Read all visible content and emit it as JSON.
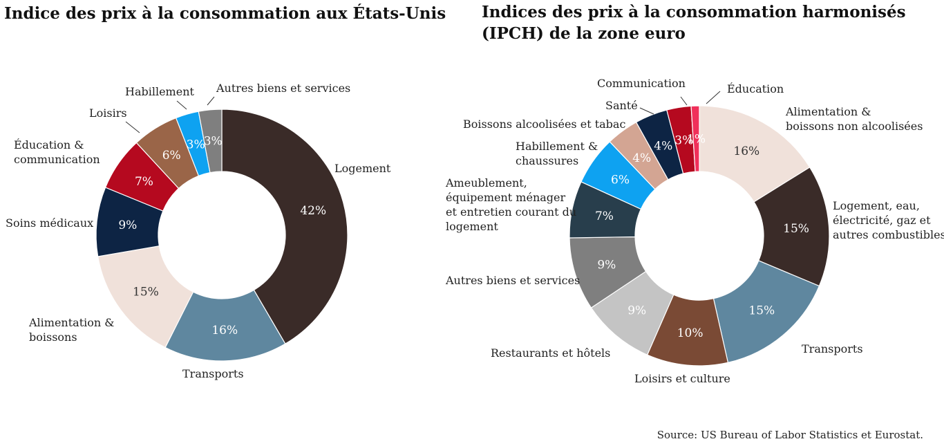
{
  "source": "Source:  US Bureau of Labor Statistics et Eurostat.",
  "chart_data": [
    {
      "type": "pie",
      "title": "Indice des prix à la consommation aux États-Unis",
      "categories": [
        "Logement",
        "Transports",
        "Alimentation & boissons",
        "Soins médicaux",
        "Éducation & communication",
        "Loisirs",
        "Habillement",
        "Autres biens et services"
      ],
      "values": [
        42,
        16,
        15,
        9,
        7,
        6,
        3,
        3
      ],
      "value_labels": [
        "42%",
        "16%",
        "15%",
        "9%",
        "7%",
        "6%",
        "3%",
        "3%"
      ],
      "label_lines": [
        [
          "Logement"
        ],
        [
          "Transports"
        ],
        [
          "Alimentation &",
          "boissons"
        ],
        [
          "Soins médicaux"
        ],
        [
          "Éducation &",
          "communication"
        ],
        [
          "Loisirs"
        ],
        [
          "Habillement"
        ],
        [
          "Autres biens et services"
        ]
      ],
      "colors": [
        "#3a2b28",
        "#5f879f",
        "#f0e1da",
        "#0d2444",
        "#b5091f",
        "#9a6548",
        "#0ea2f1",
        "#7f7f7f"
      ],
      "value_label_colors": [
        "#ffffff",
        "#ffffff",
        "#333333",
        "#ffffff",
        "#ffffff",
        "#ffffff",
        "#ffffff",
        "#ffffff"
      ],
      "donut": true
    },
    {
      "type": "pie",
      "title": "Indices des prix à la consommation harmonisés (IPCH) de la zone euro",
      "categories": [
        "Alimentation & boissons non alcoolisées",
        "Logement, eau, électricité, gaz et autres combustibles",
        "Transports",
        "Loisirs et culture",
        "Restaurants et hôtels",
        "Autres biens et services",
        "Ameublement, équipement ménager et entretien courant du logement",
        "Habillement & chaussures",
        "Boissons alcoolisées et tabac",
        "Santé",
        "Communication",
        "Éducation"
      ],
      "values": [
        16,
        15,
        15,
        10,
        9,
        9,
        7,
        6,
        4,
        4,
        3,
        1
      ],
      "value_labels": [
        "16%",
        "15%",
        "15%",
        "10%",
        "9%",
        "9%",
        "7%",
        "6%",
        "4%",
        "4%",
        "3%",
        "1%"
      ],
      "label_lines": [
        [
          "Alimentation &",
          "boissons non alcoolisées"
        ],
        [
          "Logement, eau,",
          "électricité, gaz et",
          "autres combustibles"
        ],
        [
          "Transports"
        ],
        [
          "Loisirs et culture"
        ],
        [
          "Restaurants et hôtels"
        ],
        [
          "Autres biens et services"
        ],
        [
          "Ameublement,",
          "équipement ménager",
          "et entretien courant du",
          "logement"
        ],
        [
          "Habillement &",
          "chaussures"
        ],
        [
          "Boissons alcoolisées et tabac"
        ],
        [
          "Santé"
        ],
        [
          "Communication"
        ],
        [
          "Éducation"
        ]
      ],
      "colors": [
        "#f0e1da",
        "#3a2b28",
        "#5f879f",
        "#7a4a35",
        "#c4c4c4",
        "#7f7f7f",
        "#283e4c",
        "#0ea2f1",
        "#d3a593",
        "#0d2444",
        "#b5091f",
        "#f0305a"
      ],
      "value_label_colors": [
        "#333333",
        "#ffffff",
        "#ffffff",
        "#ffffff",
        "#ffffff",
        "#ffffff",
        "#ffffff",
        "#ffffff",
        "#ffffff",
        "#ffffff",
        "#ffffff",
        "#ffffff"
      ],
      "donut": true
    }
  ]
}
